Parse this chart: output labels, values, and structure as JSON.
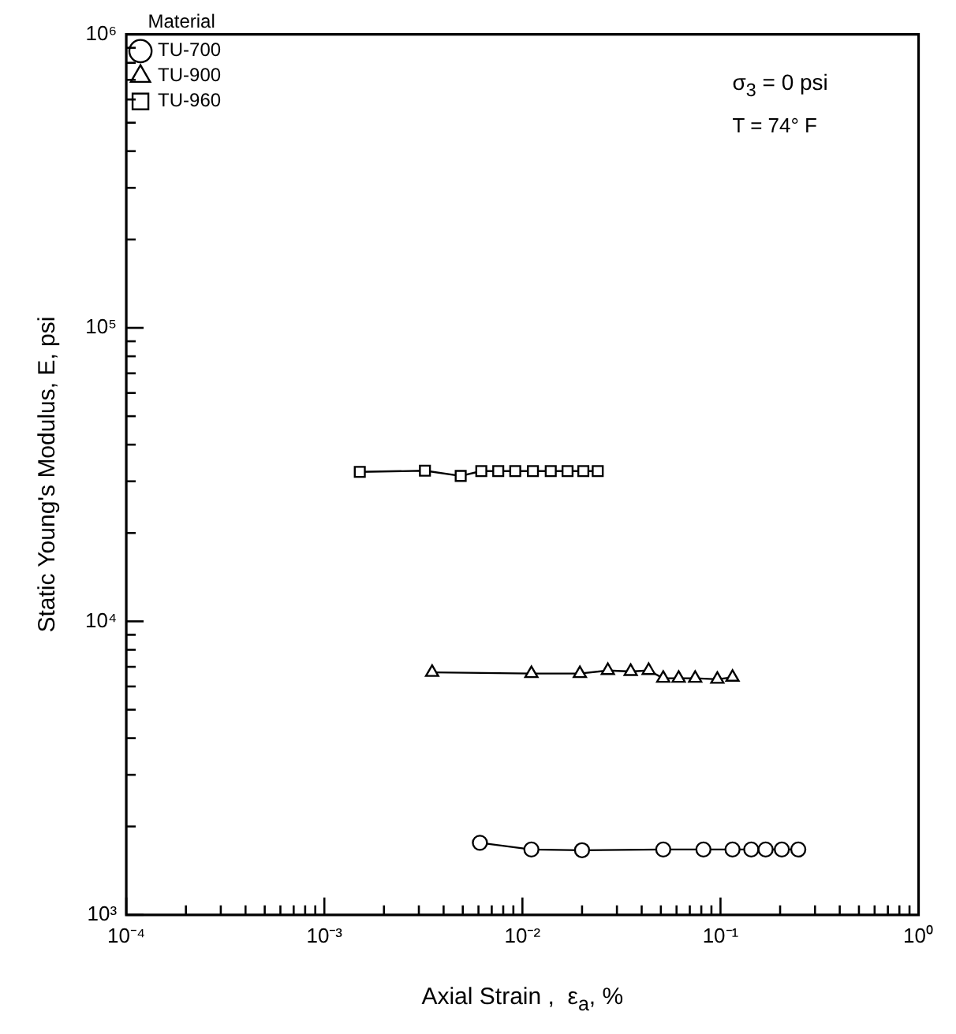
{
  "chart_data": {
    "type": "line",
    "xlabel": "Axial Strain ,  ε$_{a}$, %",
    "ylabel": "Static Young's Modulus, E, psi",
    "legend_title": "Material",
    "legend": "top left",
    "log": "xy",
    "grid": false,
    "line_style": "solid",
    "annotations": [
      "σ$_{3}$ = 0 psi",
      "T = 74° F"
    ],
    "xlim": [
      0.0001,
      1
    ],
    "ylim": [
      1000,
      1000000
    ],
    "xticks": [
      {
        "value": 0.0001,
        "label": "10⁻⁴"
      },
      {
        "value": 0.0002,
        "label": null
      },
      {
        "value": 0.0003,
        "label": null
      },
      {
        "value": 0.0004,
        "label": null
      },
      {
        "value": 0.0005,
        "label": null
      },
      {
        "value": 0.0006,
        "label": null
      },
      {
        "value": 0.0007,
        "label": null
      },
      {
        "value": 0.0008,
        "label": null
      },
      {
        "value": 0.0009,
        "label": null
      },
      {
        "value": 0.001,
        "label": "10⁻³"
      },
      {
        "value": 0.002,
        "label": null
      },
      {
        "value": 0.003,
        "label": null
      },
      {
        "value": 0.004,
        "label": null
      },
      {
        "value": 0.005,
        "label": null
      },
      {
        "value": 0.006,
        "label": null
      },
      {
        "value": 0.007,
        "label": null
      },
      {
        "value": 0.008,
        "label": null
      },
      {
        "value": 0.009,
        "label": null
      },
      {
        "value": 0.01,
        "label": "10⁻²"
      },
      {
        "value": 0.02,
        "label": null
      },
      {
        "value": 0.03,
        "label": null
      },
      {
        "value": 0.04,
        "label": null
      },
      {
        "value": 0.05,
        "label": null
      },
      {
        "value": 0.06,
        "label": null
      },
      {
        "value": 0.07,
        "label": null
      },
      {
        "value": 0.08,
        "label": null
      },
      {
        "value": 0.09,
        "label": null
      },
      {
        "value": 0.1,
        "label": "10⁻¹"
      },
      {
        "value": 0.2,
        "label": null
      },
      {
        "value": 0.3,
        "label": null
      },
      {
        "value": 0.4,
        "label": null
      },
      {
        "value": 0.5,
        "label": null
      },
      {
        "value": 0.6,
        "label": null
      },
      {
        "value": 0.7,
        "label": null
      },
      {
        "value": 0.8,
        "label": null
      },
      {
        "value": 0.9,
        "label": null
      },
      {
        "value": 1,
        "label": "10⁰"
      }
    ],
    "yticks": [
      {
        "value": 1000,
        "label": "10³"
      },
      {
        "value": 2000,
        "label": null
      },
      {
        "value": 3000,
        "label": null
      },
      {
        "value": 4000,
        "label": null
      },
      {
        "value": 5000,
        "label": null
      },
      {
        "value": 6000,
        "label": null
      },
      {
        "value": 7000,
        "label": null
      },
      {
        "value": 8000,
        "label": null
      },
      {
        "value": 9000,
        "label": null
      },
      {
        "value": 10000,
        "label": "10⁴"
      },
      {
        "value": 20000,
        "label": null
      },
      {
        "value": 30000,
        "label": null
      },
      {
        "value": 40000,
        "label": null
      },
      {
        "value": 50000,
        "label": null
      },
      {
        "value": 60000,
        "label": null
      },
      {
        "value": 70000,
        "label": null
      },
      {
        "value": 80000,
        "label": null
      },
      {
        "value": 90000,
        "label": null
      },
      {
        "value": 100000,
        "label": "10⁵"
      },
      {
        "value": 200000,
        "label": null
      },
      {
        "value": 300000,
        "label": null
      },
      {
        "value": 400000,
        "label": null
      },
      {
        "value": 500000,
        "label": null
      },
      {
        "value": 600000,
        "label": null
      },
      {
        "value": 700000,
        "label": null
      },
      {
        "value": 800000,
        "label": null
      },
      {
        "value": 900000,
        "label": null
      },
      {
        "value": 1000000,
        "label": "10⁶"
      }
    ],
    "series": [
      {
        "name": "TU-700",
        "color": "#000000",
        "marker": "circle",
        "x": [
          0.0061,
          0.0111,
          0.02,
          0.0514,
          0.082,
          0.115,
          0.143,
          0.169,
          0.204,
          0.247
        ],
        "values": [
          1760,
          1670,
          1660,
          1670,
          1670,
          1670,
          1670,
          1670,
          1670,
          1670
        ]
      },
      {
        "name": "TU-900",
        "color": "#000000",
        "marker": "triangle",
        "x": [
          0.0035,
          0.0111,
          0.0195,
          0.027,
          0.0352,
          0.0434,
          0.0514,
          0.0615,
          0.0745,
          0.0964,
          0.115
        ],
        "values": [
          6700,
          6640,
          6640,
          6800,
          6750,
          6800,
          6400,
          6400,
          6400,
          6350,
          6450
        ]
      },
      {
        "name": "TU-960",
        "color": "#000000",
        "marker": "square",
        "x": [
          0.00151,
          0.00322,
          0.00488,
          0.0062,
          0.00755,
          0.0092,
          0.0113,
          0.0139,
          0.0169,
          0.0203,
          0.024
        ],
        "values": [
          32300,
          32600,
          31300,
          32500,
          32500,
          32500,
          32500,
          32500,
          32500,
          32500,
          32500
        ]
      }
    ]
  }
}
